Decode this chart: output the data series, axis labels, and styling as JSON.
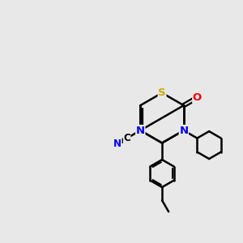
{
  "bg_color": "#e8e8e8",
  "bond_color": "#000000",
  "N_color": "#0000ee",
  "O_color": "#ee0000",
  "S_color": "#ccaa00",
  "line_width": 1.8,
  "font_size": 9.5,
  "figsize": [
    3.0,
    3.0
  ],
  "dpi": 100,
  "xlim": [
    0,
    10
  ],
  "ylim": [
    0,
    10
  ]
}
